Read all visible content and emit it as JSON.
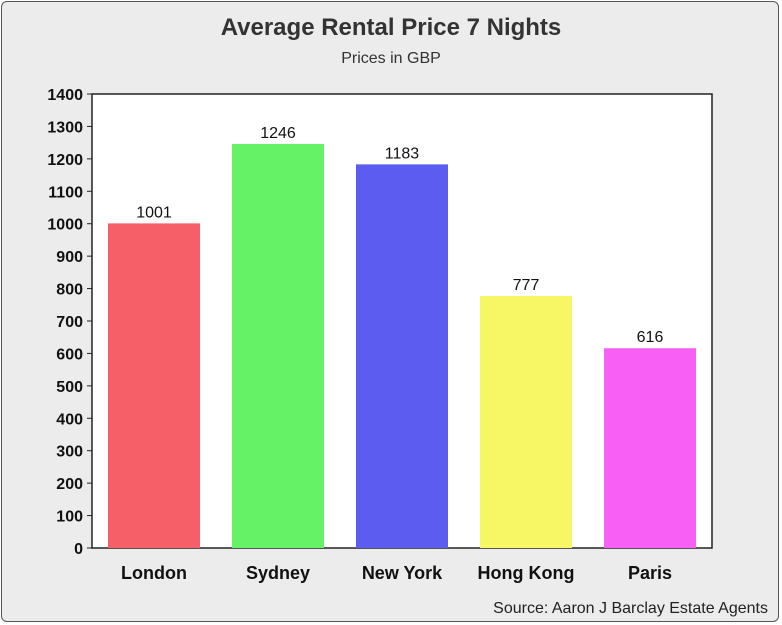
{
  "chart_data": {
    "type": "bar",
    "title": "Average Rental Price 7 Nights",
    "subtitle": "Prices in GBP",
    "source": "Source: Aaron J Barclay Estate Agents",
    "categories": [
      "London",
      "Sydney",
      "New York",
      "Hong Kong",
      "Paris"
    ],
    "values": [
      1001,
      1246,
      1183,
      777,
      616
    ],
    "data_labels": [
      "1001",
      "1246",
      "1183",
      "777",
      "616"
    ],
    "colors": [
      "#f75f68",
      "#66f266",
      "#5c5cf0",
      "#f7f766",
      "#f75ff5"
    ],
    "ylim": [
      0,
      1400
    ],
    "yticks": [
      0,
      100,
      200,
      300,
      400,
      500,
      600,
      700,
      800,
      900,
      1000,
      1100,
      1200,
      1300,
      1400
    ],
    "grid": false,
    "plot_background": "#ffffff"
  }
}
